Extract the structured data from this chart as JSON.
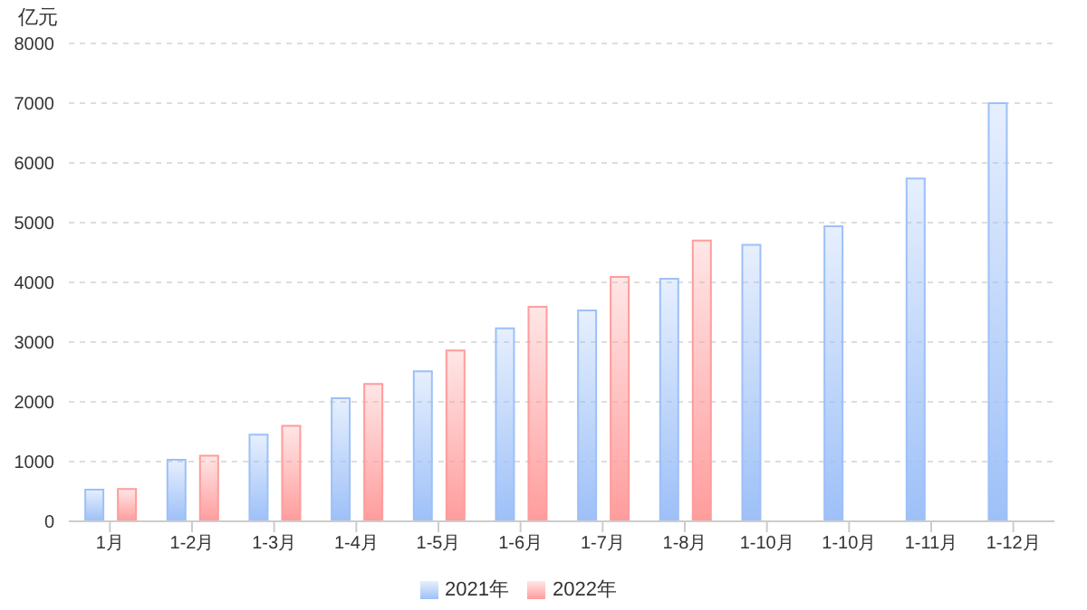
{
  "chart_data": {
    "type": "bar",
    "ylabel": "亿元",
    "categories": [
      "1月",
      "1-2月",
      "1-3月",
      "1-4月",
      "1-5月",
      "1-6月",
      "1-7月",
      "1-8月",
      "1-10月",
      "1-10月",
      "1-11月",
      "1-12月"
    ],
    "series": [
      {
        "name": "2021年",
        "color": "#9dc0f8",
        "values": [
          530,
          1030,
          1450,
          2060,
          2510,
          3230,
          3530,
          4060,
          4630,
          4940,
          5740,
          7000
        ]
      },
      {
        "name": "2022年",
        "color": "#ff9c9c",
        "values": [
          540,
          1100,
          1600,
          2300,
          2860,
          3590,
          4090,
          4700,
          null,
          null,
          null,
          null
        ]
      }
    ],
    "ylim": [
      0,
      8000
    ],
    "yticks": [
      0,
      1000,
      2000,
      3000,
      4000,
      5000,
      6000,
      7000,
      8000
    ],
    "grid": "y",
    "legend": "bottom"
  }
}
